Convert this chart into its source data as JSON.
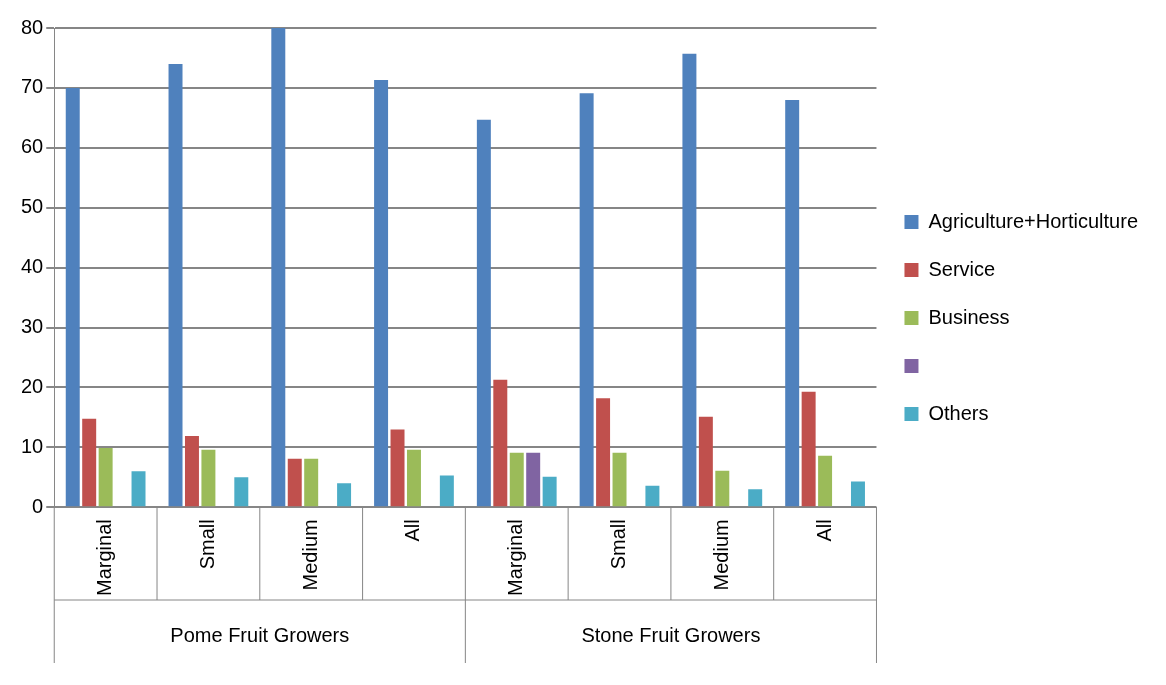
{
  "chart_data": {
    "type": "bar",
    "categories": [
      "Marginal",
      "Small",
      "Medium",
      "All",
      "Marginal",
      "Small",
      "Medium",
      "All"
    ],
    "annotations": [
      "Pome Fruit Growers",
      "Stone Fruit Growers"
    ],
    "series": [
      {
        "name": "Agriculture+Horticulture",
        "color": "#4f81bd",
        "values": [
          70,
          74,
          80,
          71.3,
          64.7,
          69.1,
          75.7,
          68
        ]
      },
      {
        "name": "Service",
        "color": "#c0504d",
        "values": [
          14.8,
          11.9,
          8.1,
          13,
          21.3,
          18.2,
          15.1,
          19.3
        ]
      },
      {
        "name": "Business",
        "color": "#9bbb59",
        "values": [
          9.9,
          9.6,
          8.1,
          9.6,
          9.1,
          9.1,
          6.1,
          8.6
        ]
      },
      {
        "color": "#8064a2",
        "values": [
          null,
          null,
          null,
          null,
          9.1,
          null,
          null,
          null
        ]
      },
      {
        "name": "Others",
        "color": "#4bacc6",
        "values": [
          6,
          5,
          4,
          5.3,
          5.1,
          3.6,
          3,
          4.3
        ]
      }
    ],
    "ylim": [
      0,
      80
    ],
    "yticks": [
      0,
      10,
      20,
      30,
      40,
      50,
      60,
      70,
      80
    ],
    "grid": "y",
    "legend": "right"
  }
}
